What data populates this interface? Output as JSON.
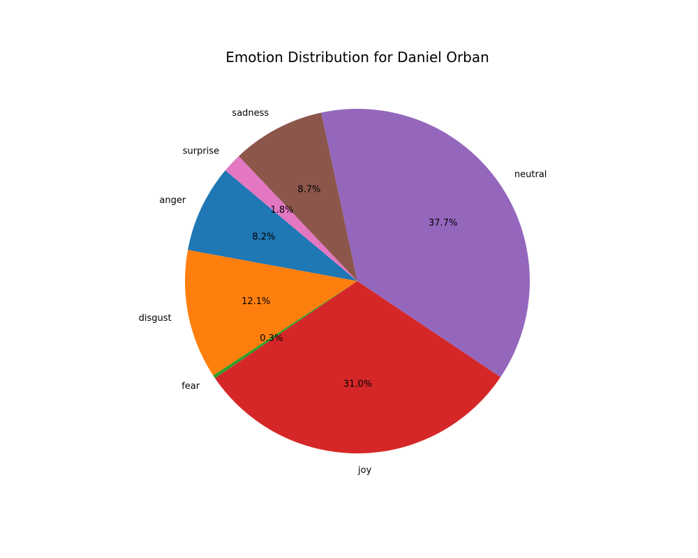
{
  "chart_data": {
    "type": "pie",
    "title": "Emotion Distribution for Daniel Orban",
    "start_angle_deg": 140,
    "direction": "counterclockwise",
    "slices": [
      {
        "label": "anger",
        "value": 8.2,
        "pct_label": "8.2%",
        "color": "#1f77b4"
      },
      {
        "label": "disgust",
        "value": 12.1,
        "pct_label": "12.1%",
        "color": "#ff7f0e"
      },
      {
        "label": "fear",
        "value": 0.3,
        "pct_label": "0.3%",
        "color": "#2ca02c"
      },
      {
        "label": "joy",
        "value": 31.0,
        "pct_label": "31.0%",
        "color": "#d62728"
      },
      {
        "label": "neutral",
        "value": 37.7,
        "pct_label": "37.7%",
        "color": "#9467bd"
      },
      {
        "label": "sadness",
        "value": 8.7,
        "pct_label": "8.7%",
        "color": "#8c564b"
      },
      {
        "label": "surprise",
        "value": 1.8,
        "pct_label": "1.8%",
        "color": "#e377c2"
      }
    ]
  }
}
